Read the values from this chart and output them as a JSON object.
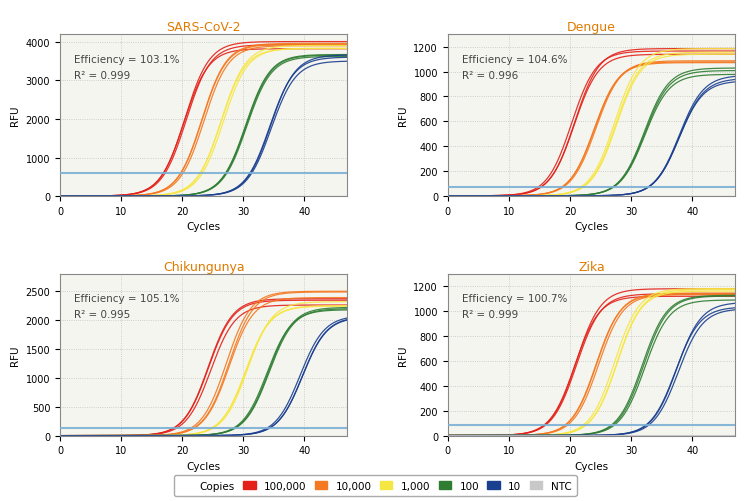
{
  "panels": [
    {
      "title": "SARS-CoV-2",
      "efficiency": "Efficiency = 103.1%",
      "r2": "R² = 0.999",
      "ylim": [
        0,
        4200
      ],
      "yticks": [
        0,
        1000,
        2000,
        3000,
        4000
      ],
      "threshold": 600,
      "threshold_color": "#7bafd4",
      "curves": [
        {
          "color": "#e32119",
          "ct": 20.5,
          "plateau": 3900,
          "n": 3
        },
        {
          "color": "#f47920",
          "ct": 23.5,
          "plateau": 3850,
          "n": 3
        },
        {
          "color": "#f5e642",
          "ct": 26.5,
          "plateau": 3900,
          "n": 3
        },
        {
          "color": "#2e7d32",
          "ct": 30.5,
          "plateau": 3700,
          "n": 3
        },
        {
          "color": "#1a3f8f",
          "ct": 34.5,
          "plateau": 3600,
          "n": 3
        },
        {
          "color": "#c8c8c8",
          "ct": 99,
          "plateau": 0,
          "n": 3
        }
      ]
    },
    {
      "title": "Dengue",
      "efficiency": "Efficiency = 104.6%",
      "r2": "R² = 0.996",
      "ylim": [
        0,
        1300
      ],
      "yticks": [
        0,
        200,
        400,
        600,
        800,
        1000,
        1200
      ],
      "threshold": 75,
      "threshold_color": "#7bafd4",
      "curves": [
        {
          "color": "#e32119",
          "ct": 20.5,
          "plateau": 1150,
          "n": 3
        },
        {
          "color": "#f47920",
          "ct": 24.0,
          "plateau": 1100,
          "n": 3
        },
        {
          "color": "#f5e642",
          "ct": 27.5,
          "plateau": 1150,
          "n": 3
        },
        {
          "color": "#2e7d32",
          "ct": 32.0,
          "plateau": 1000,
          "n": 3
        },
        {
          "color": "#1a3f8f",
          "ct": 38.0,
          "plateau": 950,
          "n": 3
        },
        {
          "color": "#c8c8c8",
          "ct": 99,
          "plateau": 0,
          "n": 3
        }
      ]
    },
    {
      "title": "Chikungunya",
      "efficiency": "Efficiency = 105.1%",
      "r2": "R² = 0.995",
      "ylim": [
        0,
        2800
      ],
      "yticks": [
        0,
        500,
        1000,
        1500,
        2000,
        2500
      ],
      "threshold": 130,
      "threshold_color": "#7bafd4",
      "curves": [
        {
          "color": "#e32119",
          "ct": 24.5,
          "plateau": 2300,
          "n": 3
        },
        {
          "color": "#f47920",
          "ct": 27.5,
          "plateau": 2450,
          "n": 3
        },
        {
          "color": "#f5e642",
          "ct": 30.5,
          "plateau": 2300,
          "n": 3
        },
        {
          "color": "#2e7d32",
          "ct": 34.0,
          "plateau": 2200,
          "n": 3
        },
        {
          "color": "#1a3f8f",
          "ct": 39.5,
          "plateau": 2050,
          "n": 3
        },
        {
          "color": "#c8c8c8",
          "ct": 99,
          "plateau": 0,
          "n": 3
        }
      ]
    },
    {
      "title": "Zika",
      "efficiency": "Efficiency = 100.7%",
      "r2": "R² = 0.999",
      "ylim": [
        0,
        1300
      ],
      "yticks": [
        0,
        200,
        400,
        600,
        800,
        1000,
        1200
      ],
      "threshold": 85,
      "threshold_color": "#7bafd4",
      "curves": [
        {
          "color": "#e32119",
          "ct": 21.0,
          "plateau": 1150,
          "n": 3
        },
        {
          "color": "#f47920",
          "ct": 24.5,
          "plateau": 1150,
          "n": 3
        },
        {
          "color": "#f5e642",
          "ct": 27.5,
          "plateau": 1150,
          "n": 3
        },
        {
          "color": "#2e7d32",
          "ct": 32.0,
          "plateau": 1100,
          "n": 3
        },
        {
          "color": "#1a3f8f",
          "ct": 37.5,
          "plateau": 1050,
          "n": 3
        },
        {
          "color": "#c8c8c8",
          "ct": 99,
          "plateau": 0,
          "n": 3
        }
      ]
    }
  ],
  "xlim": [
    0,
    47
  ],
  "xticks": [
    0,
    10,
    20,
    30,
    40
  ],
  "xlabel": "Cycles",
  "ylabel": "RFU",
  "title_color": "#e07b00",
  "title_fontsize": 9,
  "axis_fontsize": 7.5,
  "tick_fontsize": 7,
  "legend_labels": [
    "100,000",
    "10,000",
    "1,000",
    "100",
    "10",
    "NTC"
  ],
  "legend_colors": [
    "#e32119",
    "#f47920",
    "#f5e642",
    "#2e7d32",
    "#1a3f8f",
    "#c8c8c8"
  ],
  "background_color": "#f5f5f0",
  "grid_color": "#aaaaaa"
}
